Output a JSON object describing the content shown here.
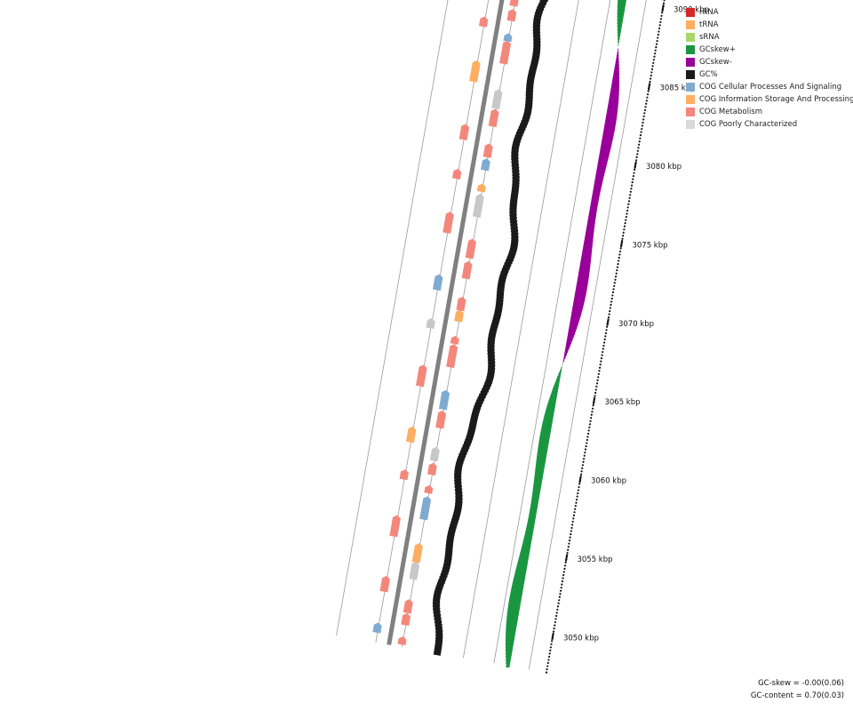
{
  "legend": {
    "items": [
      {
        "label": "rRNA",
        "color": "#d62728"
      },
      {
        "label": "tRNA",
        "color": "#fdae61"
      },
      {
        "label": "sRNA",
        "color": "#a6d96a"
      },
      {
        "label": "GCskew+",
        "color": "#1a9641"
      },
      {
        "label": "GCskew-",
        "color": "#990099"
      },
      {
        "label": "GC%",
        "color": "#1a1a1a"
      },
      {
        "label": "COG Cellular Processes And Signaling",
        "color": "#7fabd0"
      },
      {
        "label": "COG Information Storage And Processing",
        "color": "#fdae61"
      },
      {
        "label": "COG Metabolism",
        "color": "#f4877b"
      },
      {
        "label": "COG Poorly Characterized",
        "color": "#d9d9d9"
      }
    ]
  },
  "axis": {
    "unit": "kbp",
    "ticks": [
      {
        "kbp": 3050,
        "label": "3050 kbp"
      },
      {
        "kbp": 3055,
        "label": "3055 kbp"
      },
      {
        "kbp": 3060,
        "label": "3060 kbp"
      },
      {
        "kbp": 3065,
        "label": "3065 kbp"
      },
      {
        "kbp": 3070,
        "label": "3070 kbp"
      },
      {
        "kbp": 3075,
        "label": "3075 kbp"
      },
      {
        "kbp": 3080,
        "label": "3080 kbp"
      },
      {
        "kbp": 3085,
        "label": "3085 kbp"
      },
      {
        "kbp": 3090,
        "label": "3090 kbp"
      }
    ]
  },
  "colors": {
    "backbone": "#808080",
    "ring_line": "#9a9a9a",
    "gc_content": "#1a1a1a",
    "gc_skew_pos": "#1a9641",
    "gc_skew_neg": "#990099",
    "cog_metabolism": "#f4877b",
    "cog_info": "#fdae61",
    "cog_cellular": "#7fabd0",
    "cog_poor": "#c8c8c8"
  },
  "stats": {
    "gc_skew": "GC-skew = -0.00(0.06)",
    "gc_content": "GC-content = 0.70(0.03)"
  }
}
